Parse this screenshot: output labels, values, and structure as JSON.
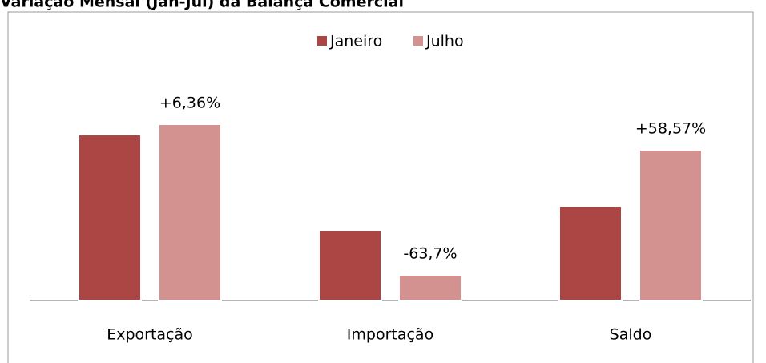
{
  "chart_data": {
    "type": "bar",
    "title": "Variação Mensal (Jan-Jul) da Balança Comercial",
    "categories": [
      "Exportação",
      "Importação",
      "Saldo"
    ],
    "series": [
      {
        "name": "Janeiro",
        "color": "#ab4644",
        "values": [
          207,
          88,
          118
        ]
      },
      {
        "name": "Julho",
        "color": "#d39190",
        "values": [
          220,
          32,
          188
        ]
      }
    ],
    "annotations": [
      "+6,36%",
      "-63,7%",
      "+58,57%"
    ],
    "ylim": [
      0,
      250
    ],
    "legend": "top"
  }
}
